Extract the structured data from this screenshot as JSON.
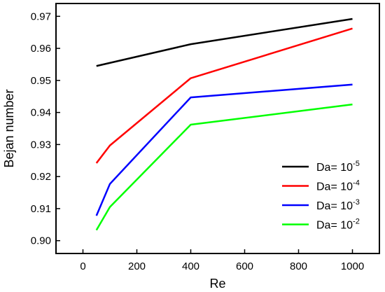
{
  "chart_data": {
    "type": "line",
    "xlabel": "Re",
    "ylabel": "Bejan number",
    "xlim": [
      -100,
      1100
    ],
    "ylim": [
      0.896,
      0.974
    ],
    "xticks": [
      0,
      200,
      400,
      600,
      800,
      1000
    ],
    "yticks": [
      0.9,
      0.91,
      0.92,
      0.93,
      0.94,
      0.95,
      0.96,
      0.97
    ],
    "grid": false,
    "legend_position": "bottom-right",
    "series": [
      {
        "name": "Da= 10",
        "exponent": "-5",
        "color": "#000000",
        "x": [
          50,
          400,
          1000
        ],
        "y": [
          0.9545,
          0.9613,
          0.9692
        ]
      },
      {
        "name": "Da= 10",
        "exponent": "-4",
        "color": "#ff0000",
        "x": [
          50,
          100,
          400,
          1000
        ],
        "y": [
          0.9242,
          0.9297,
          0.9507,
          0.9662
        ]
      },
      {
        "name": "Da= 10",
        "exponent": "-3",
        "color": "#0000ff",
        "x": [
          50,
          100,
          400,
          1000
        ],
        "y": [
          0.9078,
          0.9177,
          0.9447,
          0.9487
        ]
      },
      {
        "name": "Da= 10",
        "exponent": "-2",
        "color": "#00ff00",
        "x": [
          50,
          100,
          400,
          1000
        ],
        "y": [
          0.9033,
          0.9105,
          0.9362,
          0.9425
        ]
      }
    ]
  }
}
